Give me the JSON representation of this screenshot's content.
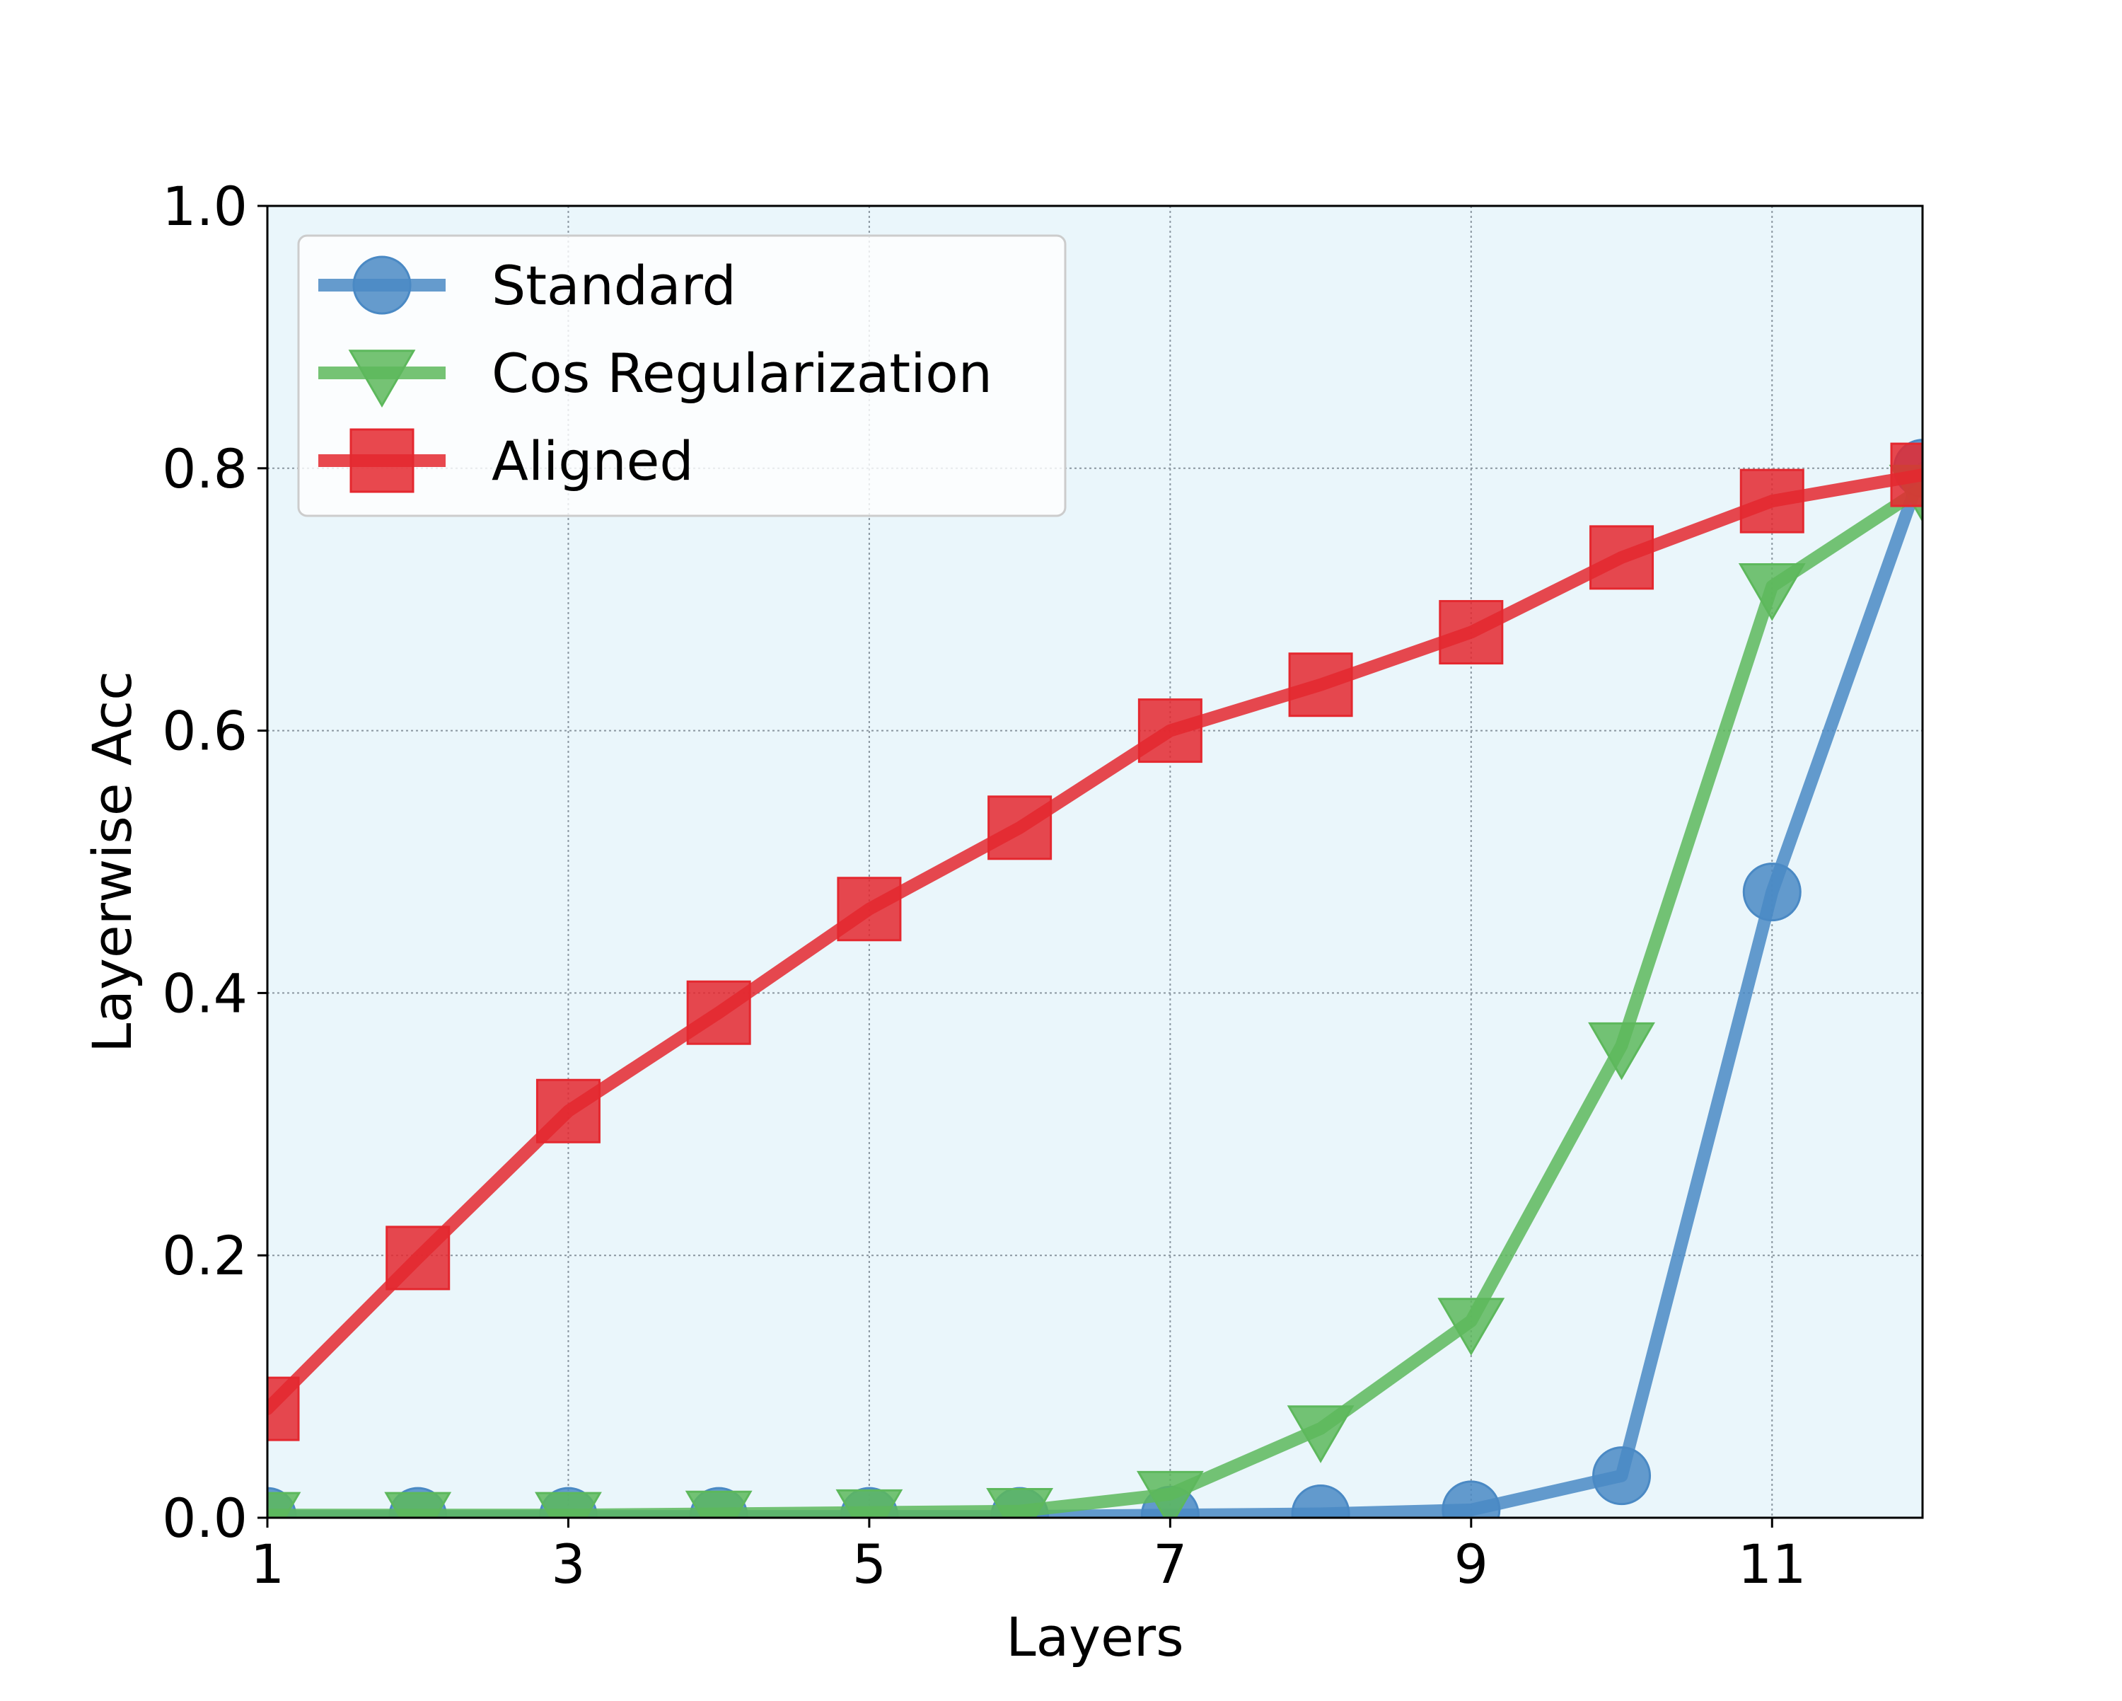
{
  "chart_data": {
    "type": "line",
    "title": "",
    "xlabel": "Layers",
    "ylabel": "Layerwise Acc",
    "xlim": [
      1,
      12
    ],
    "ylim": [
      0.0,
      1.0
    ],
    "x": [
      1,
      2,
      3,
      4,
      5,
      6,
      7,
      8,
      9,
      10,
      11,
      12
    ],
    "x_ticks": [
      1,
      3,
      5,
      7,
      9,
      11
    ],
    "x_tick_labels": [
      "1",
      "3",
      "5",
      "7",
      "9",
      "11"
    ],
    "y_ticks": [
      0.0,
      0.2,
      0.4,
      0.6,
      0.8,
      1.0
    ],
    "y_tick_labels": [
      "0.0",
      "0.2",
      "0.4",
      "0.6",
      "0.8",
      "1.0"
    ],
    "grid": true,
    "plot_background": "#eaf6fb",
    "legend_position": "upper-left",
    "series": [
      {
        "name": "Standard",
        "color": "#4a89c4",
        "marker": "circle",
        "values": [
          0.001,
          0.001,
          0.001,
          0.001,
          0.001,
          0.001,
          0.002,
          0.003,
          0.006,
          0.032,
          0.477,
          0.8
        ]
      },
      {
        "name": "Cos Regularization",
        "color": "#5db85c",
        "marker": "triangle-down",
        "values": [
          0.002,
          0.002,
          0.002,
          0.003,
          0.004,
          0.005,
          0.018,
          0.068,
          0.15,
          0.36,
          0.71,
          0.785
        ]
      },
      {
        "name": "Aligned",
        "color": "#e4282f",
        "marker": "square",
        "values": [
          0.083,
          0.198,
          0.31,
          0.385,
          0.464,
          0.526,
          0.6,
          0.635,
          0.675,
          0.732,
          0.775,
          0.795
        ]
      }
    ]
  }
}
